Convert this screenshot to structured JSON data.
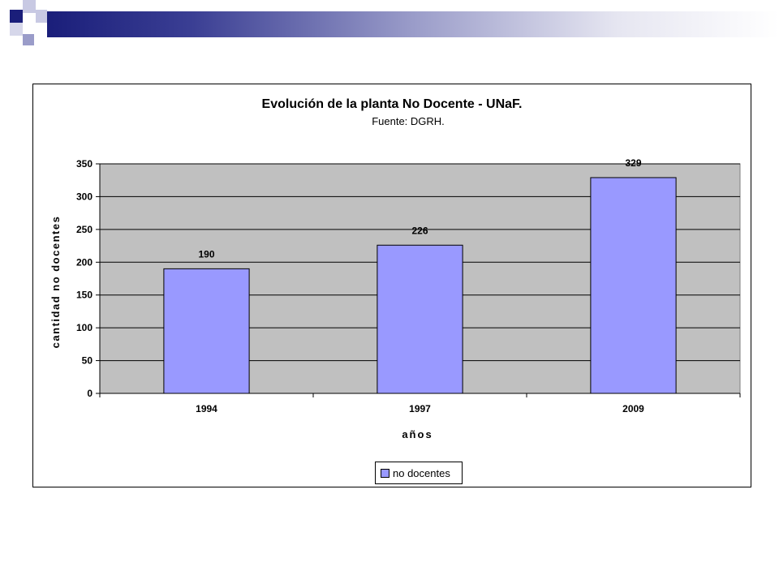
{
  "colors": {
    "header_dark": "#1a1e7a",
    "plot_bg": "#c0c0c0",
    "bar_fill": "#9999ff"
  },
  "chart_data": {
    "type": "bar",
    "title": "Evolución de la planta No Docente - UNaF.",
    "subtitle": "Fuente: DGRH.",
    "categories": [
      "1994",
      "1997",
      "2009"
    ],
    "series": [
      {
        "name": "no docentes",
        "values": [
          190,
          226,
          329
        ]
      }
    ],
    "data_labels": [
      "190",
      "226",
      "329"
    ],
    "xlabel": "años",
    "ylabel": "cantidad no docentes",
    "ylim": [
      0,
      350
    ],
    "yticks": [
      0,
      50,
      100,
      150,
      200,
      250,
      300,
      350
    ],
    "grid": true,
    "legend": "bottom"
  }
}
